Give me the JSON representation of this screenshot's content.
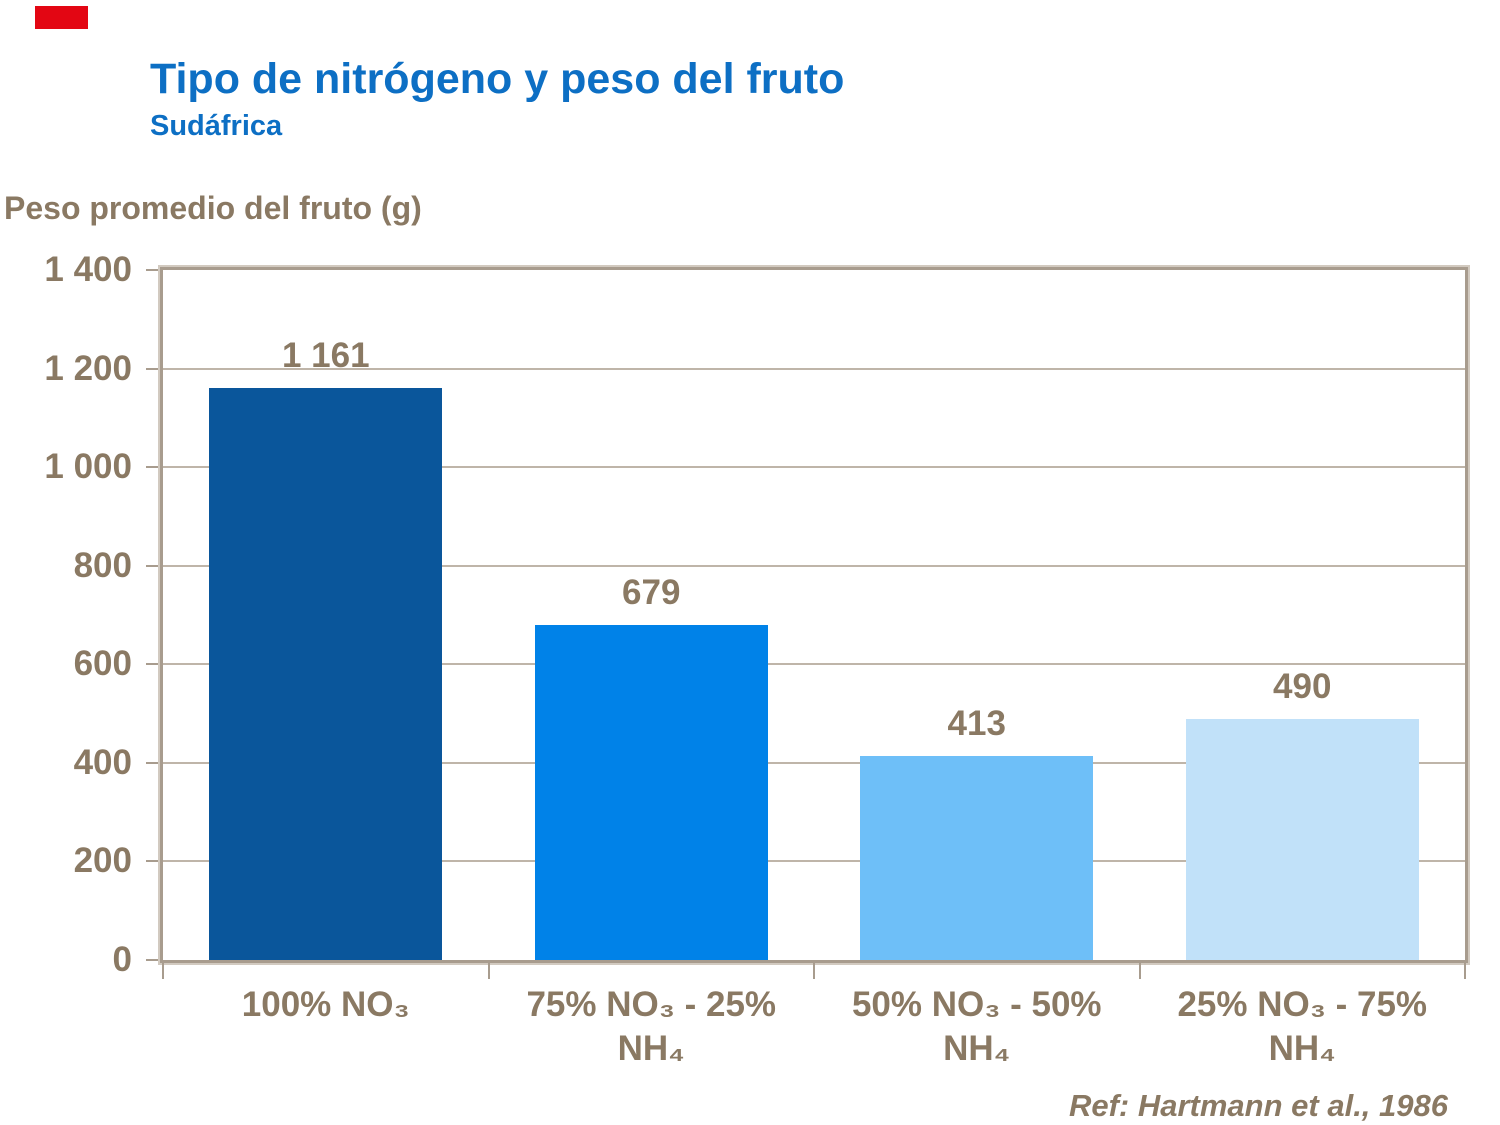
{
  "header": {
    "title": "Tipo de nitrógeno y peso del fruto",
    "subtitle": "Sudáfrica"
  },
  "footer": {
    "reference": "Ref: Hartmann et al., 1986"
  },
  "accent_bar": {
    "color": "#E30613"
  },
  "colors": {
    "title_blue": "#0D6FC4",
    "text_brown": "#8A7963",
    "frame_dark": "#A89C8E",
    "frame_light": "#D2CAC0",
    "gridline": "#BFB5A9",
    "background": "#FFFFFF"
  },
  "chart_data": {
    "type": "bar",
    "title": "Tipo de nitrógeno y peso del fruto",
    "subtitle": "Sudáfrica",
    "ylabel": "Peso promedio del fruto (g)",
    "xlabel": "",
    "ylim": [
      0,
      1400
    ],
    "ytick_interval": 200,
    "ytick_labels": [
      "0",
      "200",
      "400",
      "600",
      "800",
      "1 000",
      "1 200",
      "1 400"
    ],
    "grid": true,
    "legend": false,
    "categories": [
      "100% NO₃",
      "75% NO₃ - 25% NH₄",
      "50% NO₃ - 50% NH₄",
      "25% NO₃ - 75% NH₄"
    ],
    "category_lines": [
      [
        "100% NO₃"
      ],
      [
        "75% NO₃ - 25%",
        "NH₄"
      ],
      [
        "50% NO₃ - 50%",
        "NH₄"
      ],
      [
        "25% NO₃ - 75%",
        "NH₄"
      ]
    ],
    "values": [
      1161,
      679,
      413,
      490
    ],
    "value_labels": [
      "1 161",
      "679",
      "413",
      "490"
    ],
    "bar_colors": [
      "#0A569B",
      "#0082E8",
      "#6EBFF8",
      "#C1E1F9"
    ],
    "reference": "Ref: Hartmann et al., 1986"
  }
}
